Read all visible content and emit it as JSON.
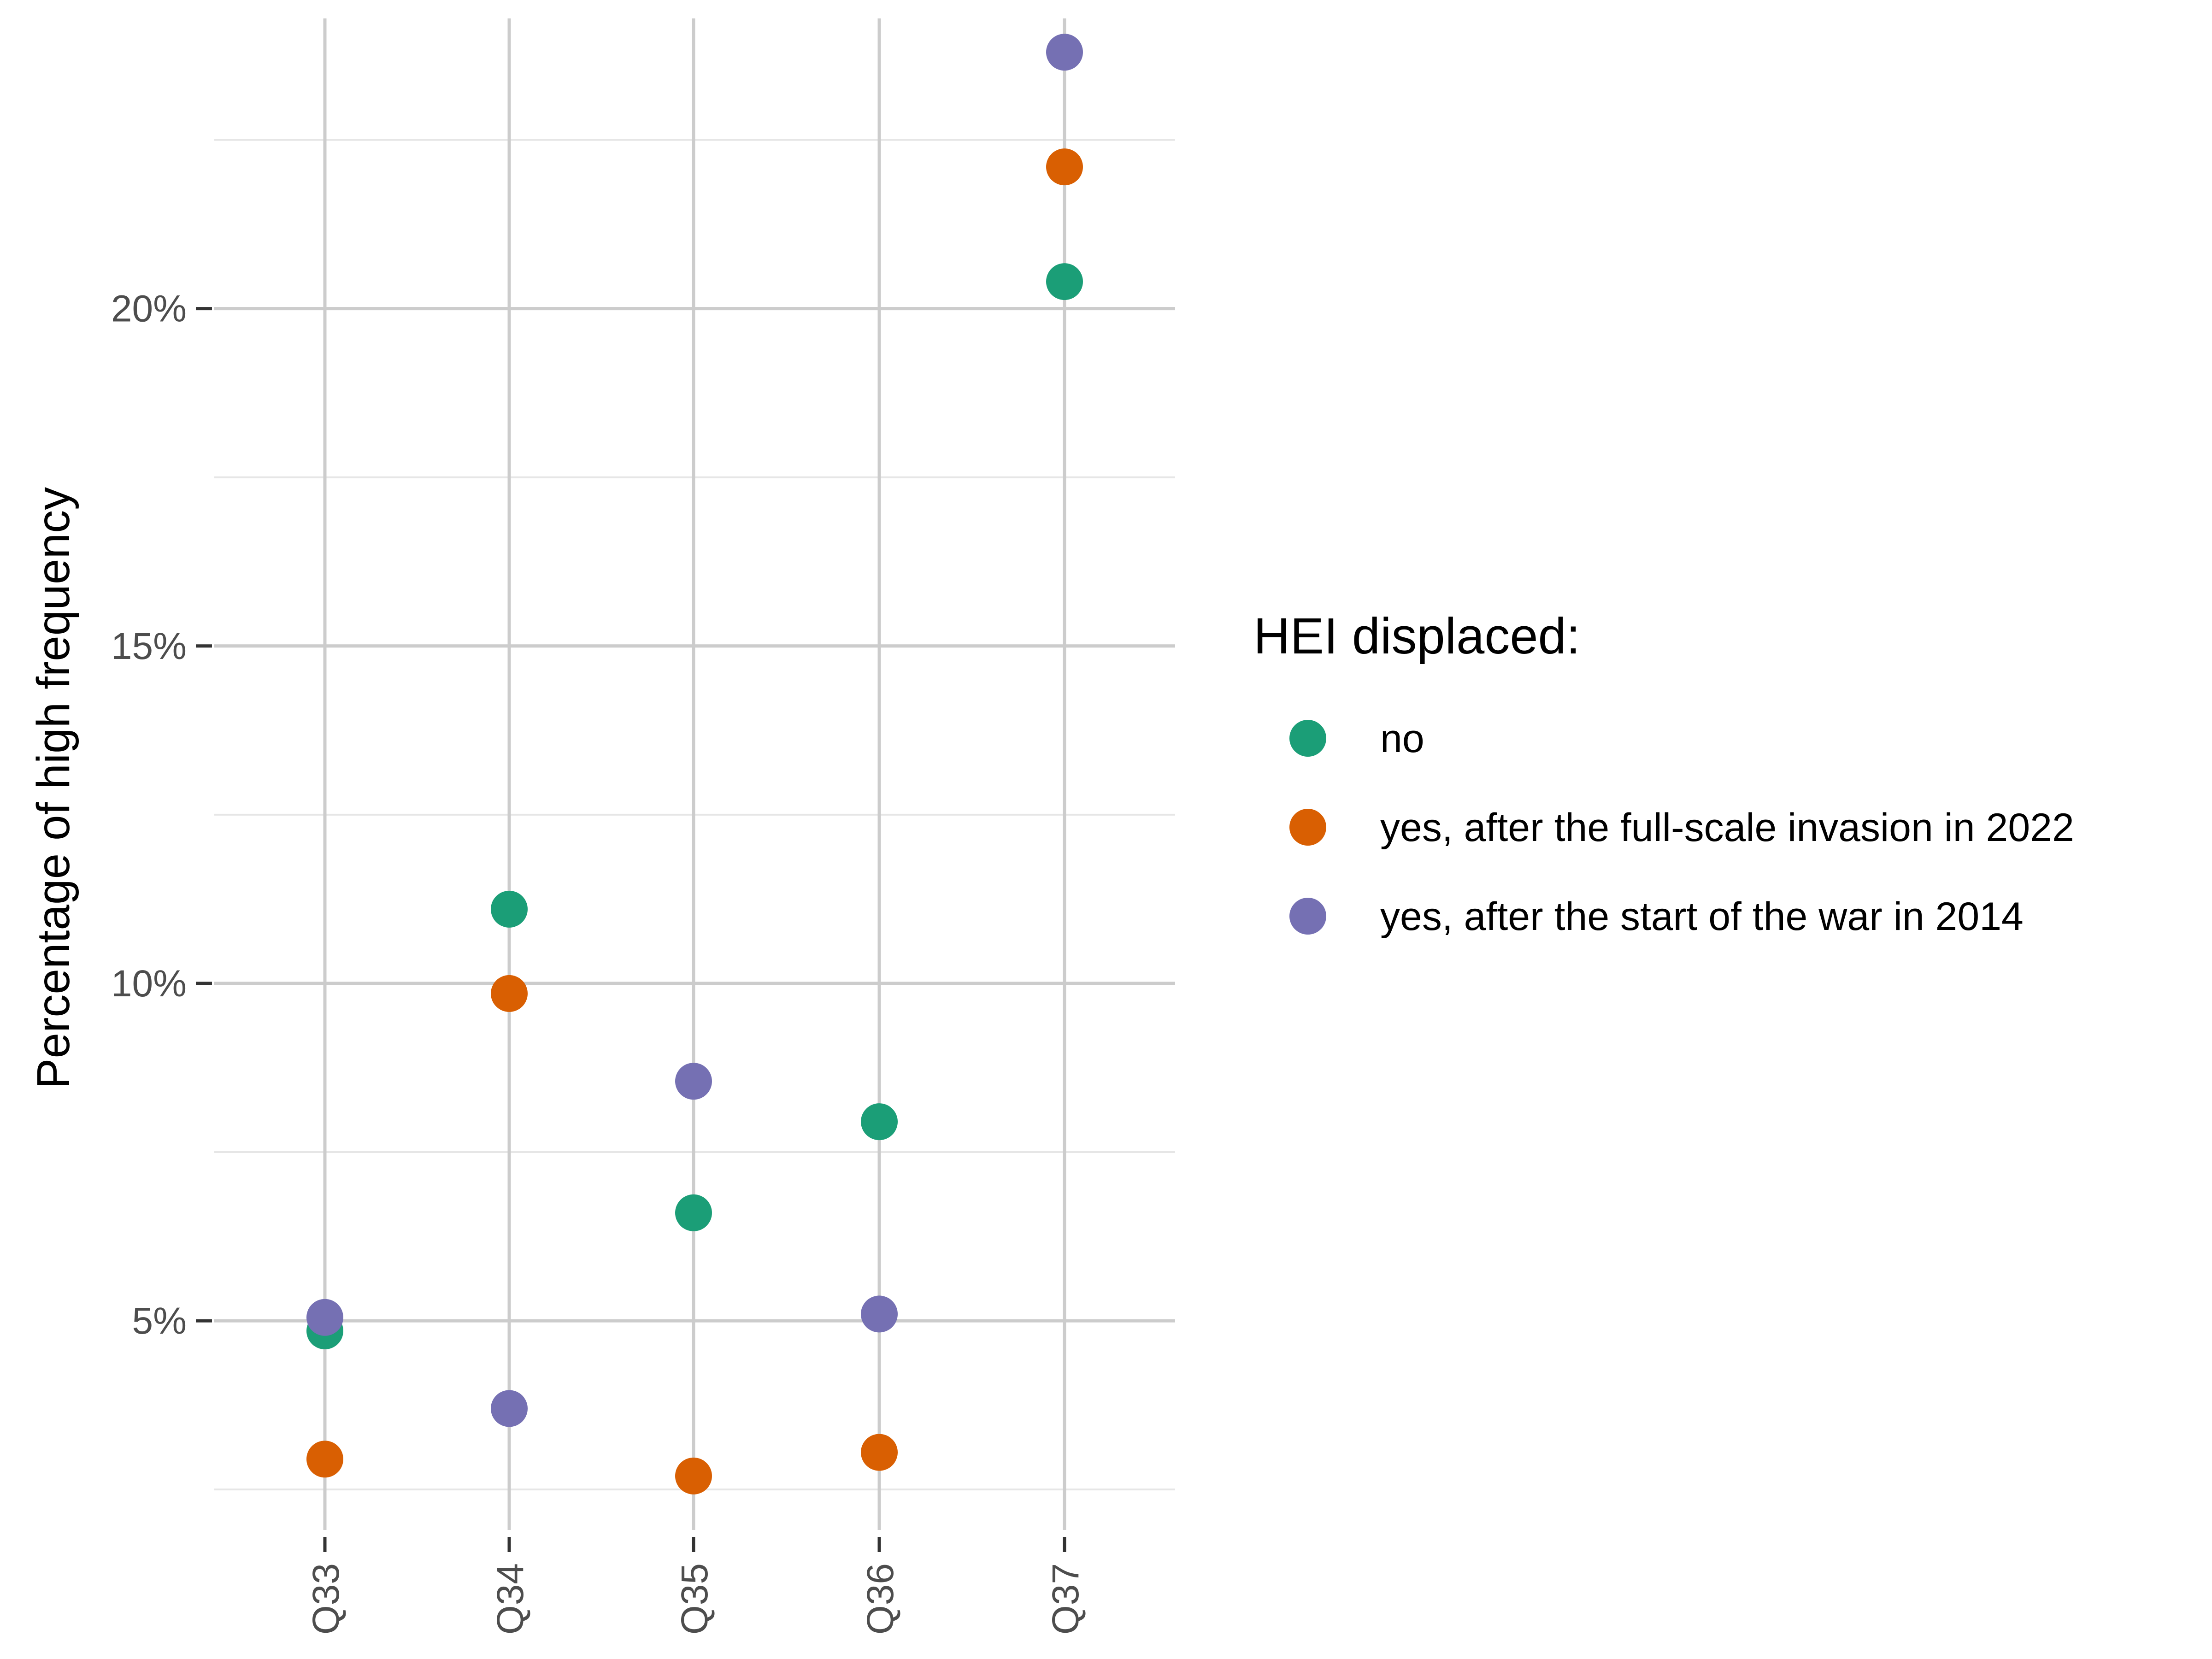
{
  "chart_data": {
    "type": "scatter",
    "title": "",
    "xlabel": "",
    "ylabel": "Percentage of high frequency",
    "categories": [
      "Q33",
      "Q34",
      "Q35",
      "Q36",
      "Q37"
    ],
    "ylim": [
      1.9,
      24.3
    ],
    "y_ticks": [
      5,
      10,
      15,
      20
    ],
    "y_tick_labels": [
      "5%",
      "10%",
      "15%",
      "20%"
    ],
    "y_minor_ticks": [
      2.5,
      7.5,
      12.5,
      17.5,
      22.5
    ],
    "grid": true,
    "legend": {
      "title": "HEI displaced:",
      "position": "right"
    },
    "series": [
      {
        "name": "no",
        "color": "#1b9e77",
        "values": [
          4.85,
          11.1,
          6.6,
          7.95,
          20.4
        ]
      },
      {
        "name": "yes, after the full-scale invasion in 2022",
        "color": "#d95f02",
        "values": [
          2.95,
          9.85,
          2.7,
          3.05,
          22.1
        ]
      },
      {
        "name": "yes, after the start of the war in 2014",
        "color": "#7570b3",
        "values": [
          5.05,
          3.7,
          8.55,
          5.1,
          23.8
        ]
      }
    ]
  }
}
